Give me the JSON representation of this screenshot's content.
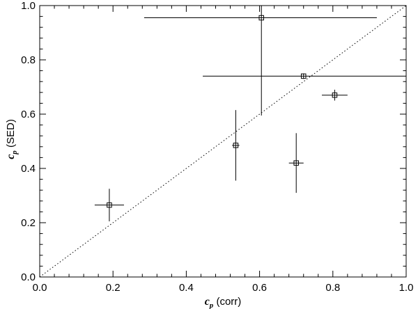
{
  "chart_data": {
    "type": "scatter",
    "title": "",
    "xlabel": {
      "symbol": "c",
      "subscript": "p",
      "text": " (corr)"
    },
    "ylabel": {
      "symbol": "c",
      "subscript": "p",
      "text": " (SED)"
    },
    "xlim": [
      0.0,
      1.0
    ],
    "ylim": [
      0.0,
      1.0
    ],
    "xticks": [
      "0.0",
      "0.2",
      "0.4",
      "0.6",
      "0.8",
      "1.0"
    ],
    "yticks": [
      "0.0",
      "0.2",
      "0.4",
      "0.6",
      "0.8",
      "1.0"
    ],
    "grid": false,
    "reference_line": {
      "style": "dotted",
      "x": [
        0.0,
        1.0
      ],
      "y": [
        0.0,
        1.0
      ]
    },
    "points": [
      {
        "x": 0.19,
        "y": 0.265,
        "x_err": [
          0.04,
          0.04
        ],
        "y_err": [
          0.06,
          0.06
        ]
      },
      {
        "x": 0.535,
        "y": 0.485,
        "x_err": [
          0.01,
          0.01
        ],
        "y_err": [
          0.13,
          0.13
        ]
      },
      {
        "x": 0.605,
        "y": 0.955,
        "x_err": [
          0.32,
          0.315
        ],
        "y_err": [
          0.36,
          0.06
        ]
      },
      {
        "x": 0.7,
        "y": 0.42,
        "x_err": [
          0.02,
          0.02
        ],
        "y_err": [
          0.11,
          0.11
        ]
      },
      {
        "x": 0.72,
        "y": 0.74,
        "x_err": [
          0.275,
          0.28
        ],
        "y_err": [
          0.01,
          0.01
        ]
      },
      {
        "x": 0.805,
        "y": 0.67,
        "x_err": [
          0.035,
          0.035
        ],
        "y_err": [
          0.02,
          0.02
        ]
      }
    ]
  }
}
